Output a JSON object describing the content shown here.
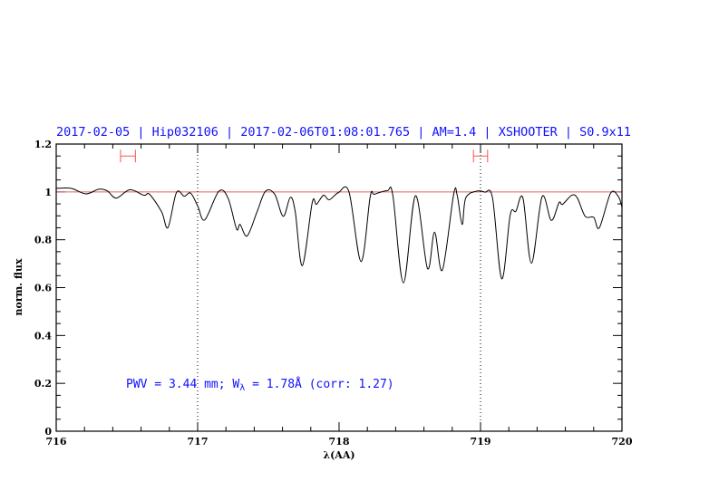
{
  "chart_data": {
    "type": "line",
    "title": "2017-02-05 | Hip032106 | 2017-02-06T01:08:01.765 | AM=1.4 | XSHOOTER | S0.9x11",
    "xlabel": "λ(AA)",
    "ylabel": "norm. flux",
    "xlim": [
      716,
      720
    ],
    "ylim": [
      0,
      1.2
    ],
    "x_ticks": [
      "716",
      "717",
      "718",
      "719",
      "720"
    ],
    "y_ticks": [
      "0",
      "0.2",
      "0.4",
      "0.6",
      "0.8",
      "1",
      "1.2"
    ],
    "grid": false,
    "annotation": {
      "prefix": "PWV = 3.44 mm; W",
      "subscript": "λ",
      "suffix": " = 1.78Å (corr: 1.27)"
    },
    "reference_line": 1.0,
    "vertical_markers": [
      717,
      719
    ],
    "continuum_windows": [
      [
        716.455,
        716.56
      ],
      [
        718.95,
        719.05
      ]
    ],
    "window_level": 1.15,
    "colors": {
      "text": "#1010ff",
      "spectrum": "#000000",
      "reference": "#e06060",
      "windows": "#ff5050"
    },
    "series": [
      {
        "x": [
          716.0,
          716.105,
          716.21,
          716.3,
          716.36,
          716.425,
          716.52,
          716.62,
          716.66,
          716.745,
          716.79,
          716.85,
          716.905,
          716.95,
          717.0,
          717.05,
          717.15,
          717.215,
          717.275,
          717.3,
          717.35,
          717.42,
          717.48,
          717.545,
          717.605,
          717.655,
          717.69,
          717.74,
          717.81,
          717.84,
          717.89,
          717.93,
          717.995,
          718.07,
          718.155,
          718.22,
          718.25,
          718.34,
          718.38,
          718.455,
          718.54,
          718.625,
          718.675,
          718.73,
          718.81,
          718.835,
          718.87,
          718.895,
          718.97,
          719.03,
          719.085,
          719.15,
          719.21,
          719.25,
          719.3,
          719.36,
          719.435,
          719.5,
          719.555,
          719.58,
          719.645,
          719.685,
          719.74,
          719.8,
          719.84,
          719.92,
          719.975,
          720.0
        ],
        "y": [
          1.015,
          1.015,
          0.992,
          1.011,
          1.005,
          0.974,
          1.009,
          0.986,
          0.99,
          0.917,
          0.851,
          0.997,
          0.982,
          0.995,
          0.942,
          0.883,
          1.003,
          0.974,
          0.845,
          0.864,
          0.816,
          0.917,
          1.003,
          0.99,
          0.898,
          0.977,
          0.917,
          0.692,
          0.955,
          0.948,
          0.986,
          0.967,
          0.997,
          1.0,
          0.709,
          0.98,
          0.99,
          1.005,
          0.986,
          0.62,
          0.984,
          0.68,
          0.832,
          0.673,
          0.99,
          0.986,
          0.864,
          0.974,
          1.003,
          0.999,
          0.974,
          0.637,
          0.904,
          0.919,
          0.974,
          0.702,
          0.98,
          0.881,
          0.955,
          0.948,
          0.986,
          0.974,
          0.898,
          0.894,
          0.85,
          0.995,
          0.98,
          0.936
        ]
      }
    ]
  }
}
